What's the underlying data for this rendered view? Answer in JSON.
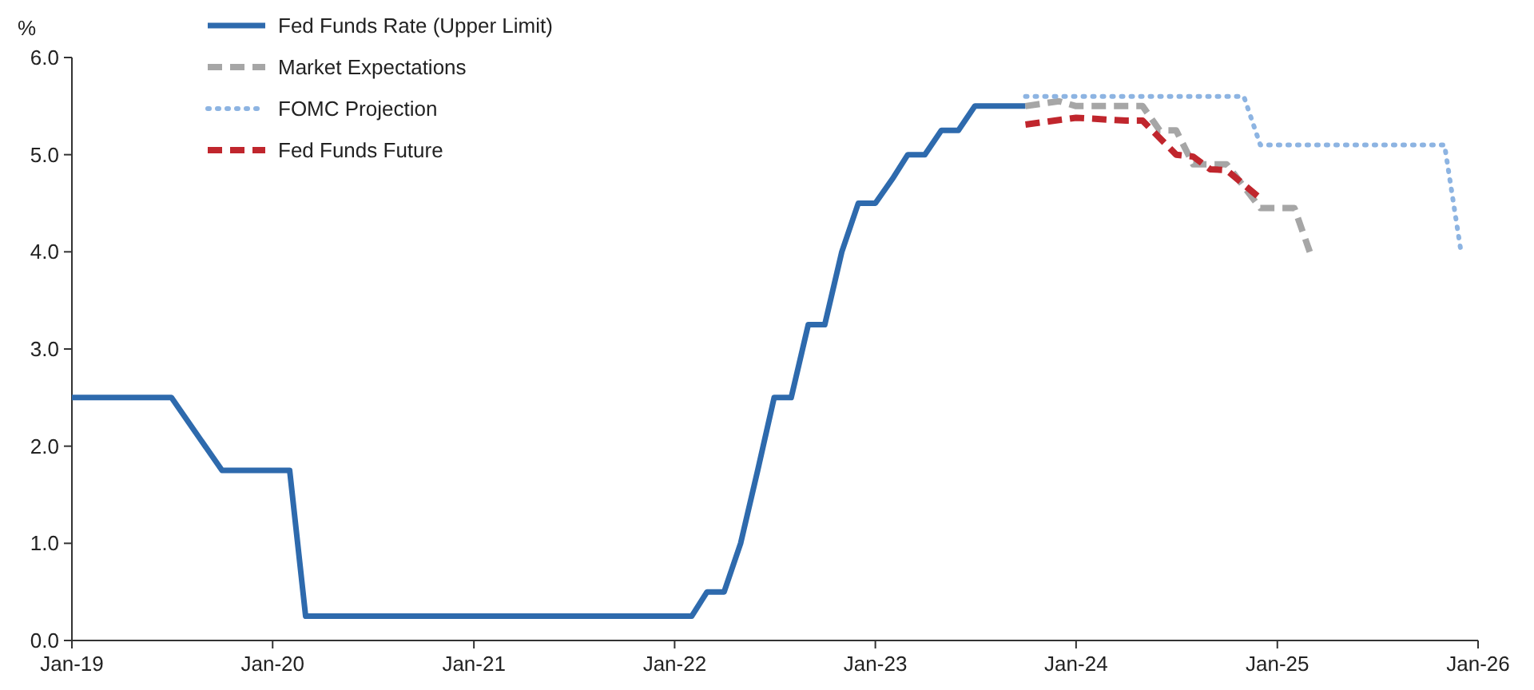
{
  "chart_data": {
    "type": "line",
    "ylabel": "%",
    "legend": "top left",
    "grid": false,
    "xlim": [
      "2019-01",
      "2026-01"
    ],
    "xticks": [
      {
        "value": "2019-01",
        "label": "Jan-19"
      },
      {
        "value": "2020-01",
        "label": "Jan-20"
      },
      {
        "value": "2021-01",
        "label": "Jan-21"
      },
      {
        "value": "2022-01",
        "label": "Jan-22"
      },
      {
        "value": "2023-01",
        "label": "Jan-23"
      },
      {
        "value": "2024-01",
        "label": "Jan-24"
      },
      {
        "value": "2025-01",
        "label": "Jan-25"
      },
      {
        "value": "2026-01",
        "label": "Jan-26"
      }
    ],
    "ylim": [
      0,
      6
    ],
    "yticks": [
      {
        "value": 0,
        "label": "0.0"
      },
      {
        "value": 1,
        "label": "1.0"
      },
      {
        "value": 2,
        "label": "2.0"
      },
      {
        "value": 3,
        "label": "3.0"
      },
      {
        "value": 4,
        "label": "4.0"
      },
      {
        "value": 5,
        "label": "5.0"
      },
      {
        "value": 6,
        "label": "6.0"
      }
    ],
    "series": [
      {
        "name": "Fed Funds Rate (Upper Limit)",
        "color": "#2e6aad",
        "line_style": "solid",
        "x": [
          "2019-01",
          "2019-07",
          "2019-10",
          "2020-02",
          "2020-03",
          "2022-02",
          "2022-03",
          "2022-04",
          "2022-05",
          "2022-06",
          "2022-07",
          "2022-08",
          "2022-09",
          "2022-10",
          "2022-11",
          "2022-12",
          "2023-01",
          "2023-02",
          "2023-03",
          "2023-04",
          "2023-05",
          "2023-06",
          "2023-07",
          "2023-10"
        ],
        "values": [
          2.5,
          2.5,
          1.75,
          1.75,
          0.25,
          0.25,
          0.5,
          0.5,
          1.0,
          1.75,
          2.5,
          2.5,
          3.25,
          3.25,
          4.0,
          4.5,
          4.5,
          4.75,
          5.0,
          5.0,
          5.25,
          5.25,
          5.5,
          5.5
        ]
      },
      {
        "name": "Market Expectations",
        "color": "#a6a6a6",
        "line_style": "dashed",
        "x": [
          "2023-10",
          "2023-12",
          "2024-01",
          "2024-05",
          "2024-06",
          "2024-07",
          "2024-08",
          "2024-10",
          "2024-12",
          "2025-02",
          "2025-03"
        ],
        "values": [
          5.5,
          5.55,
          5.5,
          5.5,
          5.25,
          5.25,
          4.9,
          4.9,
          4.45,
          4.45,
          4.0
        ]
      },
      {
        "name": "FOMC Projection",
        "color": "#8db4e2",
        "line_style": "dotted",
        "x": [
          "2023-10",
          "2024-11",
          "2024-12",
          "2025-11",
          "2025-12"
        ],
        "values": [
          5.6,
          5.6,
          5.1,
          5.1,
          4.0
        ]
      },
      {
        "name": "Fed Funds Future",
        "color": "#c0262d",
        "line_style": "dashed",
        "x": [
          "2023-10",
          "2024-01",
          "2024-04",
          "2024-05",
          "2024-07",
          "2024-08",
          "2024-09",
          "2024-10",
          "2024-12"
        ],
        "values": [
          5.31,
          5.38,
          5.35,
          5.35,
          5.0,
          4.98,
          4.85,
          4.84,
          4.55
        ]
      }
    ]
  }
}
